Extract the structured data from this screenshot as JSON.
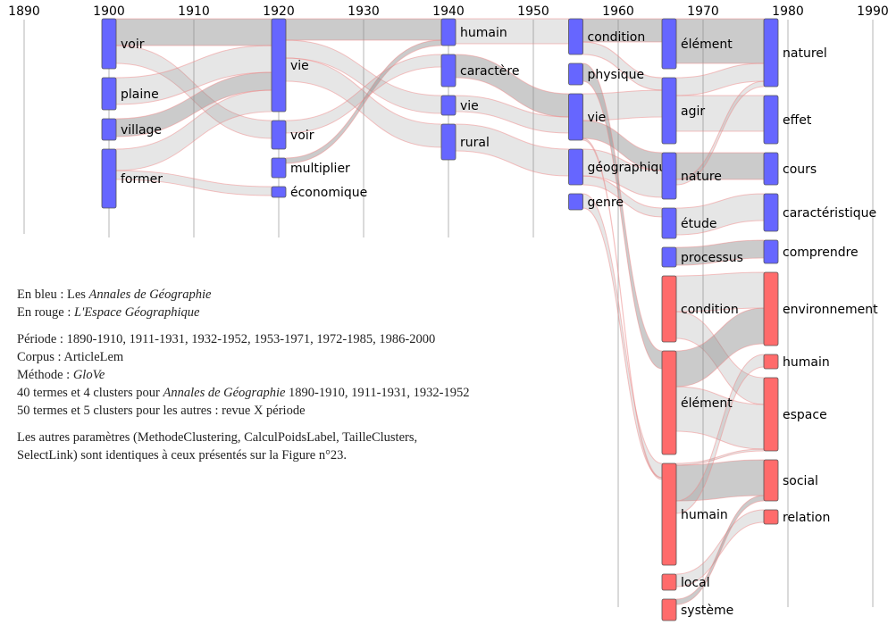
{
  "chart_data": {
    "type": "sankey",
    "axis": {
      "years": [
        1890,
        1900,
        1910,
        1920,
        1930,
        1940,
        1950,
        1960,
        1970,
        1980,
        1990
      ]
    },
    "colors": {
      "annales": "#6666ff",
      "espace": "#ff6b6b"
    },
    "columns": [
      {
        "year": 1900,
        "terms": [
          {
            "label": "voir",
            "weight": 56,
            "source": "annales"
          },
          {
            "label": "plaine",
            "weight": 36,
            "source": "annales"
          },
          {
            "label": "village",
            "weight": 24,
            "source": "annales"
          },
          {
            "label": "former",
            "weight": 66,
            "source": "annales"
          }
        ]
      },
      {
        "year": 1920,
        "terms": [
          {
            "label": "vie",
            "weight": 104,
            "source": "annales"
          },
          {
            "label": "voir",
            "weight": 32,
            "source": "annales"
          },
          {
            "label": "multiplier",
            "weight": 22,
            "source": "annales"
          },
          {
            "label": "économique",
            "weight": 12,
            "source": "annales"
          }
        ]
      },
      {
        "year": 1940,
        "terms": [
          {
            "label": "humain",
            "weight": 30,
            "source": "annales"
          },
          {
            "label": "caractère",
            "weight": 36,
            "source": "annales"
          },
          {
            "label": "vie",
            "weight": 22,
            "source": "annales"
          },
          {
            "label": "rural",
            "weight": 40,
            "source": "annales"
          }
        ]
      },
      {
        "year": 1955,
        "terms": [
          {
            "label": "condition",
            "weight": 40,
            "source": "annales"
          },
          {
            "label": "physique",
            "weight": 24,
            "source": "annales"
          },
          {
            "label": "vie",
            "weight": 52,
            "source": "annales"
          },
          {
            "label": "géographique",
            "weight": 40,
            "source": "annales"
          },
          {
            "label": "genre",
            "weight": 18,
            "source": "annales"
          }
        ]
      },
      {
        "year": 1966,
        "terms": [
          {
            "label": "élément",
            "weight": 56,
            "source": "annales"
          },
          {
            "label": "agir",
            "weight": 74,
            "source": "annales"
          },
          {
            "label": "nature",
            "weight": 52,
            "source": "annales"
          },
          {
            "label": "étude",
            "weight": 34,
            "source": "annales"
          },
          {
            "label": "processus",
            "weight": 22,
            "source": "annales"
          },
          {
            "label": "condition",
            "weight": 74,
            "source": "espace"
          },
          {
            "label": "élément",
            "weight": 116,
            "source": "espace"
          },
          {
            "label": "humain",
            "weight": 114,
            "source": "espace"
          },
          {
            "label": "local",
            "weight": 18,
            "source": "espace"
          },
          {
            "label": "système",
            "weight": 24,
            "source": "espace"
          }
        ]
      },
      {
        "year": 1978,
        "terms": [
          {
            "label": "naturel",
            "weight": 76,
            "source": "annales"
          },
          {
            "label": "effet",
            "weight": 54,
            "source": "annales"
          },
          {
            "label": "cours",
            "weight": 36,
            "source": "annales"
          },
          {
            "label": "caractéristique",
            "weight": 42,
            "source": "annales"
          },
          {
            "label": "comprendre",
            "weight": 26,
            "source": "annales"
          },
          {
            "label": "environnement",
            "weight": 82,
            "source": "espace"
          },
          {
            "label": "humain",
            "weight": 16,
            "source": "espace"
          },
          {
            "label": "espace",
            "weight": 82,
            "source": "espace"
          },
          {
            "label": "social",
            "weight": 46,
            "source": "espace"
          },
          {
            "label": "relation",
            "weight": 16,
            "source": "espace"
          }
        ]
      }
    ],
    "links": [
      {
        "from": [
          0,
          0
        ],
        "to": [
          1,
          0
        ],
        "value": 30
      },
      {
        "from": [
          0,
          0
        ],
        "to": [
          1,
          1
        ],
        "value": 20
      },
      {
        "from": [
          0,
          1
        ],
        "to": [
          1,
          0
        ],
        "value": 30
      },
      {
        "from": [
          0,
          2
        ],
        "to": [
          1,
          0
        ],
        "value": 20
      },
      {
        "from": [
          0,
          3
        ],
        "to": [
          1,
          0
        ],
        "value": 24
      },
      {
        "from": [
          0,
          3
        ],
        "to": [
          1,
          3
        ],
        "value": 10
      },
      {
        "from": [
          1,
          0
        ],
        "to": [
          2,
          0
        ],
        "value": 24
      },
      {
        "from": [
          1,
          0
        ],
        "to": [
          2,
          2
        ],
        "value": 20
      },
      {
        "from": [
          1,
          0
        ],
        "to": [
          2,
          3
        ],
        "value": 26
      },
      {
        "from": [
          1,
          2
        ],
        "to": [
          2,
          0
        ],
        "value": 14
      },
      {
        "from": [
          1,
          1
        ],
        "to": [
          2,
          1
        ],
        "value": 14
      },
      {
        "from": [
          2,
          0
        ],
        "to": [
          3,
          0
        ],
        "value": 28
      },
      {
        "from": [
          2,
          1
        ],
        "to": [
          3,
          2
        ],
        "value": 26
      },
      {
        "from": [
          2,
          2
        ],
        "to": [
          3,
          2
        ],
        "value": 18
      },
      {
        "from": [
          2,
          3
        ],
        "to": [
          3,
          3
        ],
        "value": 30
      },
      {
        "from": [
          3,
          0
        ],
        "to": [
          4,
          0
        ],
        "value": 26
      },
      {
        "from": [
          3,
          0
        ],
        "to": [
          4,
          1
        ],
        "value": 14
      },
      {
        "from": [
          3,
          2
        ],
        "to": [
          4,
          1
        ],
        "value": 30
      },
      {
        "from": [
          3,
          2
        ],
        "to": [
          4,
          2
        ],
        "value": 20
      },
      {
        "from": [
          3,
          3
        ],
        "to": [
          4,
          2
        ],
        "value": 30
      },
      {
        "from": [
          3,
          3
        ],
        "to": [
          4,
          3
        ],
        "value": 10
      },
      {
        "from": [
          3,
          1
        ],
        "to": [
          4,
          6
        ],
        "value": 20
      },
      {
        "from": [
          3,
          4
        ],
        "to": [
          4,
          7
        ],
        "value": 16
      },
      {
        "from": [
          3,
          2
        ],
        "to": [
          4,
          7
        ],
        "value": 40
      },
      {
        "from": [
          4,
          0
        ],
        "to": [
          5,
          0
        ],
        "value": 50
      },
      {
        "from": [
          4,
          1
        ],
        "to": [
          5,
          0
        ],
        "value": 20
      },
      {
        "from": [
          4,
          1
        ],
        "to": [
          5,
          1
        ],
        "value": 40
      },
      {
        "from": [
          4,
          2
        ],
        "to": [
          5,
          2
        ],
        "value": 30
      },
      {
        "from": [
          4,
          2
        ],
        "to": [
          5,
          0
        ],
        "value": 20
      },
      {
        "from": [
          4,
          3
        ],
        "to": [
          5,
          3
        ],
        "value": 30
      },
      {
        "from": [
          4,
          4
        ],
        "to": [
          5,
          4
        ],
        "value": 20
      },
      {
        "from": [
          4,
          5
        ],
        "to": [
          5,
          5
        ],
        "value": 40
      },
      {
        "from": [
          4,
          5
        ],
        "to": [
          5,
          7
        ],
        "value": 30
      },
      {
        "from": [
          4,
          6
        ],
        "to": [
          5,
          5
        ],
        "value": 40
      },
      {
        "from": [
          4,
          6
        ],
        "to": [
          5,
          7
        ],
        "value": 50
      },
      {
        "from": [
          4,
          7
        ],
        "to": [
          5,
          7
        ],
        "value": 40
      },
      {
        "from": [
          4,
          7
        ],
        "to": [
          5,
          8
        ],
        "value": 40
      },
      {
        "from": [
          4,
          7
        ],
        "to": [
          5,
          6
        ],
        "value": 14
      },
      {
        "from": [
          4,
          8
        ],
        "to": [
          5,
          9
        ],
        "value": 14
      },
      {
        "from": [
          4,
          9
        ],
        "to": [
          5,
          8
        ],
        "value": 20
      }
    ]
  },
  "legend": {
    "line1_prefix": "En bleu : Les ",
    "line1_title": "Annales de Géographie",
    "line2_prefix": "En rouge : ",
    "line2_title": "L'Espace Géographique",
    "periode": "Période : 1890-1910, 1911-1931, 1932-1952, 1953-1971, 1972-1985, 1986-2000",
    "corpus": "Corpus : ArticleLem",
    "methode_prefix": "Méthode : ",
    "methode_value": "GloVe",
    "clusters1_prefix": "40 termes et 4 clusters pour ",
    "clusters1_title": "Annales de Géographie",
    "clusters1_suffix": " 1890-1910, 1911-1931, 1932-1952",
    "clusters2": "50 termes et 5 clusters pour les autres : revue X période",
    "params1": "Les autres paramètres (MethodeClustering, CalculPoidsLabel, TailleClusters,",
    "params2": "SelectLink) sont identiques à ceux présentés sur la Figure n°23."
  }
}
